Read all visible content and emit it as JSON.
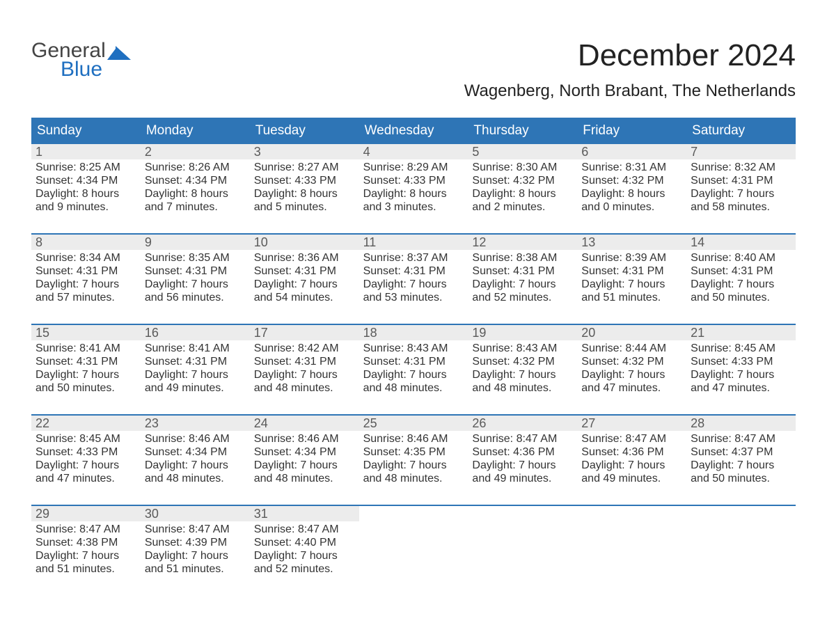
{
  "logo": {
    "top": "General",
    "bottom": "Blue",
    "icon_fill": "#1f6fc0"
  },
  "title": "December 2024",
  "location": "Wagenberg, North Brabant, The Netherlands",
  "colors": {
    "header_blue": "#2e75b6",
    "accent_blue": "#1f6fc0",
    "day_bg": "#ececec",
    "text": "#333333"
  },
  "weekdays": [
    "Sunday",
    "Monday",
    "Tuesday",
    "Wednesday",
    "Thursday",
    "Friday",
    "Saturday"
  ],
  "weeks": [
    [
      {
        "num": "1",
        "sunrise": "Sunrise: 8:25 AM",
        "sunset": "Sunset: 4:34 PM",
        "daylight1": "Daylight: 8 hours",
        "daylight2": "and 9 minutes."
      },
      {
        "num": "2",
        "sunrise": "Sunrise: 8:26 AM",
        "sunset": "Sunset: 4:34 PM",
        "daylight1": "Daylight: 8 hours",
        "daylight2": "and 7 minutes."
      },
      {
        "num": "3",
        "sunrise": "Sunrise: 8:27 AM",
        "sunset": "Sunset: 4:33 PM",
        "daylight1": "Daylight: 8 hours",
        "daylight2": "and 5 minutes."
      },
      {
        "num": "4",
        "sunrise": "Sunrise: 8:29 AM",
        "sunset": "Sunset: 4:33 PM",
        "daylight1": "Daylight: 8 hours",
        "daylight2": "and 3 minutes."
      },
      {
        "num": "5",
        "sunrise": "Sunrise: 8:30 AM",
        "sunset": "Sunset: 4:32 PM",
        "daylight1": "Daylight: 8 hours",
        "daylight2": "and 2 minutes."
      },
      {
        "num": "6",
        "sunrise": "Sunrise: 8:31 AM",
        "sunset": "Sunset: 4:32 PM",
        "daylight1": "Daylight: 8 hours",
        "daylight2": "and 0 minutes."
      },
      {
        "num": "7",
        "sunrise": "Sunrise: 8:32 AM",
        "sunset": "Sunset: 4:31 PM",
        "daylight1": "Daylight: 7 hours",
        "daylight2": "and 58 minutes."
      }
    ],
    [
      {
        "num": "8",
        "sunrise": "Sunrise: 8:34 AM",
        "sunset": "Sunset: 4:31 PM",
        "daylight1": "Daylight: 7 hours",
        "daylight2": "and 57 minutes."
      },
      {
        "num": "9",
        "sunrise": "Sunrise: 8:35 AM",
        "sunset": "Sunset: 4:31 PM",
        "daylight1": "Daylight: 7 hours",
        "daylight2": "and 56 minutes."
      },
      {
        "num": "10",
        "sunrise": "Sunrise: 8:36 AM",
        "sunset": "Sunset: 4:31 PM",
        "daylight1": "Daylight: 7 hours",
        "daylight2": "and 54 minutes."
      },
      {
        "num": "11",
        "sunrise": "Sunrise: 8:37 AM",
        "sunset": "Sunset: 4:31 PM",
        "daylight1": "Daylight: 7 hours",
        "daylight2": "and 53 minutes."
      },
      {
        "num": "12",
        "sunrise": "Sunrise: 8:38 AM",
        "sunset": "Sunset: 4:31 PM",
        "daylight1": "Daylight: 7 hours",
        "daylight2": "and 52 minutes."
      },
      {
        "num": "13",
        "sunrise": "Sunrise: 8:39 AM",
        "sunset": "Sunset: 4:31 PM",
        "daylight1": "Daylight: 7 hours",
        "daylight2": "and 51 minutes."
      },
      {
        "num": "14",
        "sunrise": "Sunrise: 8:40 AM",
        "sunset": "Sunset: 4:31 PM",
        "daylight1": "Daylight: 7 hours",
        "daylight2": "and 50 minutes."
      }
    ],
    [
      {
        "num": "15",
        "sunrise": "Sunrise: 8:41 AM",
        "sunset": "Sunset: 4:31 PM",
        "daylight1": "Daylight: 7 hours",
        "daylight2": "and 50 minutes."
      },
      {
        "num": "16",
        "sunrise": "Sunrise: 8:41 AM",
        "sunset": "Sunset: 4:31 PM",
        "daylight1": "Daylight: 7 hours",
        "daylight2": "and 49 minutes."
      },
      {
        "num": "17",
        "sunrise": "Sunrise: 8:42 AM",
        "sunset": "Sunset: 4:31 PM",
        "daylight1": "Daylight: 7 hours",
        "daylight2": "and 48 minutes."
      },
      {
        "num": "18",
        "sunrise": "Sunrise: 8:43 AM",
        "sunset": "Sunset: 4:31 PM",
        "daylight1": "Daylight: 7 hours",
        "daylight2": "and 48 minutes."
      },
      {
        "num": "19",
        "sunrise": "Sunrise: 8:43 AM",
        "sunset": "Sunset: 4:32 PM",
        "daylight1": "Daylight: 7 hours",
        "daylight2": "and 48 minutes."
      },
      {
        "num": "20",
        "sunrise": "Sunrise: 8:44 AM",
        "sunset": "Sunset: 4:32 PM",
        "daylight1": "Daylight: 7 hours",
        "daylight2": "and 47 minutes."
      },
      {
        "num": "21",
        "sunrise": "Sunrise: 8:45 AM",
        "sunset": "Sunset: 4:33 PM",
        "daylight1": "Daylight: 7 hours",
        "daylight2": "and 47 minutes."
      }
    ],
    [
      {
        "num": "22",
        "sunrise": "Sunrise: 8:45 AM",
        "sunset": "Sunset: 4:33 PM",
        "daylight1": "Daylight: 7 hours",
        "daylight2": "and 47 minutes."
      },
      {
        "num": "23",
        "sunrise": "Sunrise: 8:46 AM",
        "sunset": "Sunset: 4:34 PM",
        "daylight1": "Daylight: 7 hours",
        "daylight2": "and 48 minutes."
      },
      {
        "num": "24",
        "sunrise": "Sunrise: 8:46 AM",
        "sunset": "Sunset: 4:34 PM",
        "daylight1": "Daylight: 7 hours",
        "daylight2": "and 48 minutes."
      },
      {
        "num": "25",
        "sunrise": "Sunrise: 8:46 AM",
        "sunset": "Sunset: 4:35 PM",
        "daylight1": "Daylight: 7 hours",
        "daylight2": "and 48 minutes."
      },
      {
        "num": "26",
        "sunrise": "Sunrise: 8:47 AM",
        "sunset": "Sunset: 4:36 PM",
        "daylight1": "Daylight: 7 hours",
        "daylight2": "and 49 minutes."
      },
      {
        "num": "27",
        "sunrise": "Sunrise: 8:47 AM",
        "sunset": "Sunset: 4:36 PM",
        "daylight1": "Daylight: 7 hours",
        "daylight2": "and 49 minutes."
      },
      {
        "num": "28",
        "sunrise": "Sunrise: 8:47 AM",
        "sunset": "Sunset: 4:37 PM",
        "daylight1": "Daylight: 7 hours",
        "daylight2": "and 50 minutes."
      }
    ],
    [
      {
        "num": "29",
        "sunrise": "Sunrise: 8:47 AM",
        "sunset": "Sunset: 4:38 PM",
        "daylight1": "Daylight: 7 hours",
        "daylight2": "and 51 minutes."
      },
      {
        "num": "30",
        "sunrise": "Sunrise: 8:47 AM",
        "sunset": "Sunset: 4:39 PM",
        "daylight1": "Daylight: 7 hours",
        "daylight2": "and 51 minutes."
      },
      {
        "num": "31",
        "sunrise": "Sunrise: 8:47 AM",
        "sunset": "Sunset: 4:40 PM",
        "daylight1": "Daylight: 7 hours",
        "daylight2": "and 52 minutes."
      },
      null,
      null,
      null,
      null
    ]
  ]
}
